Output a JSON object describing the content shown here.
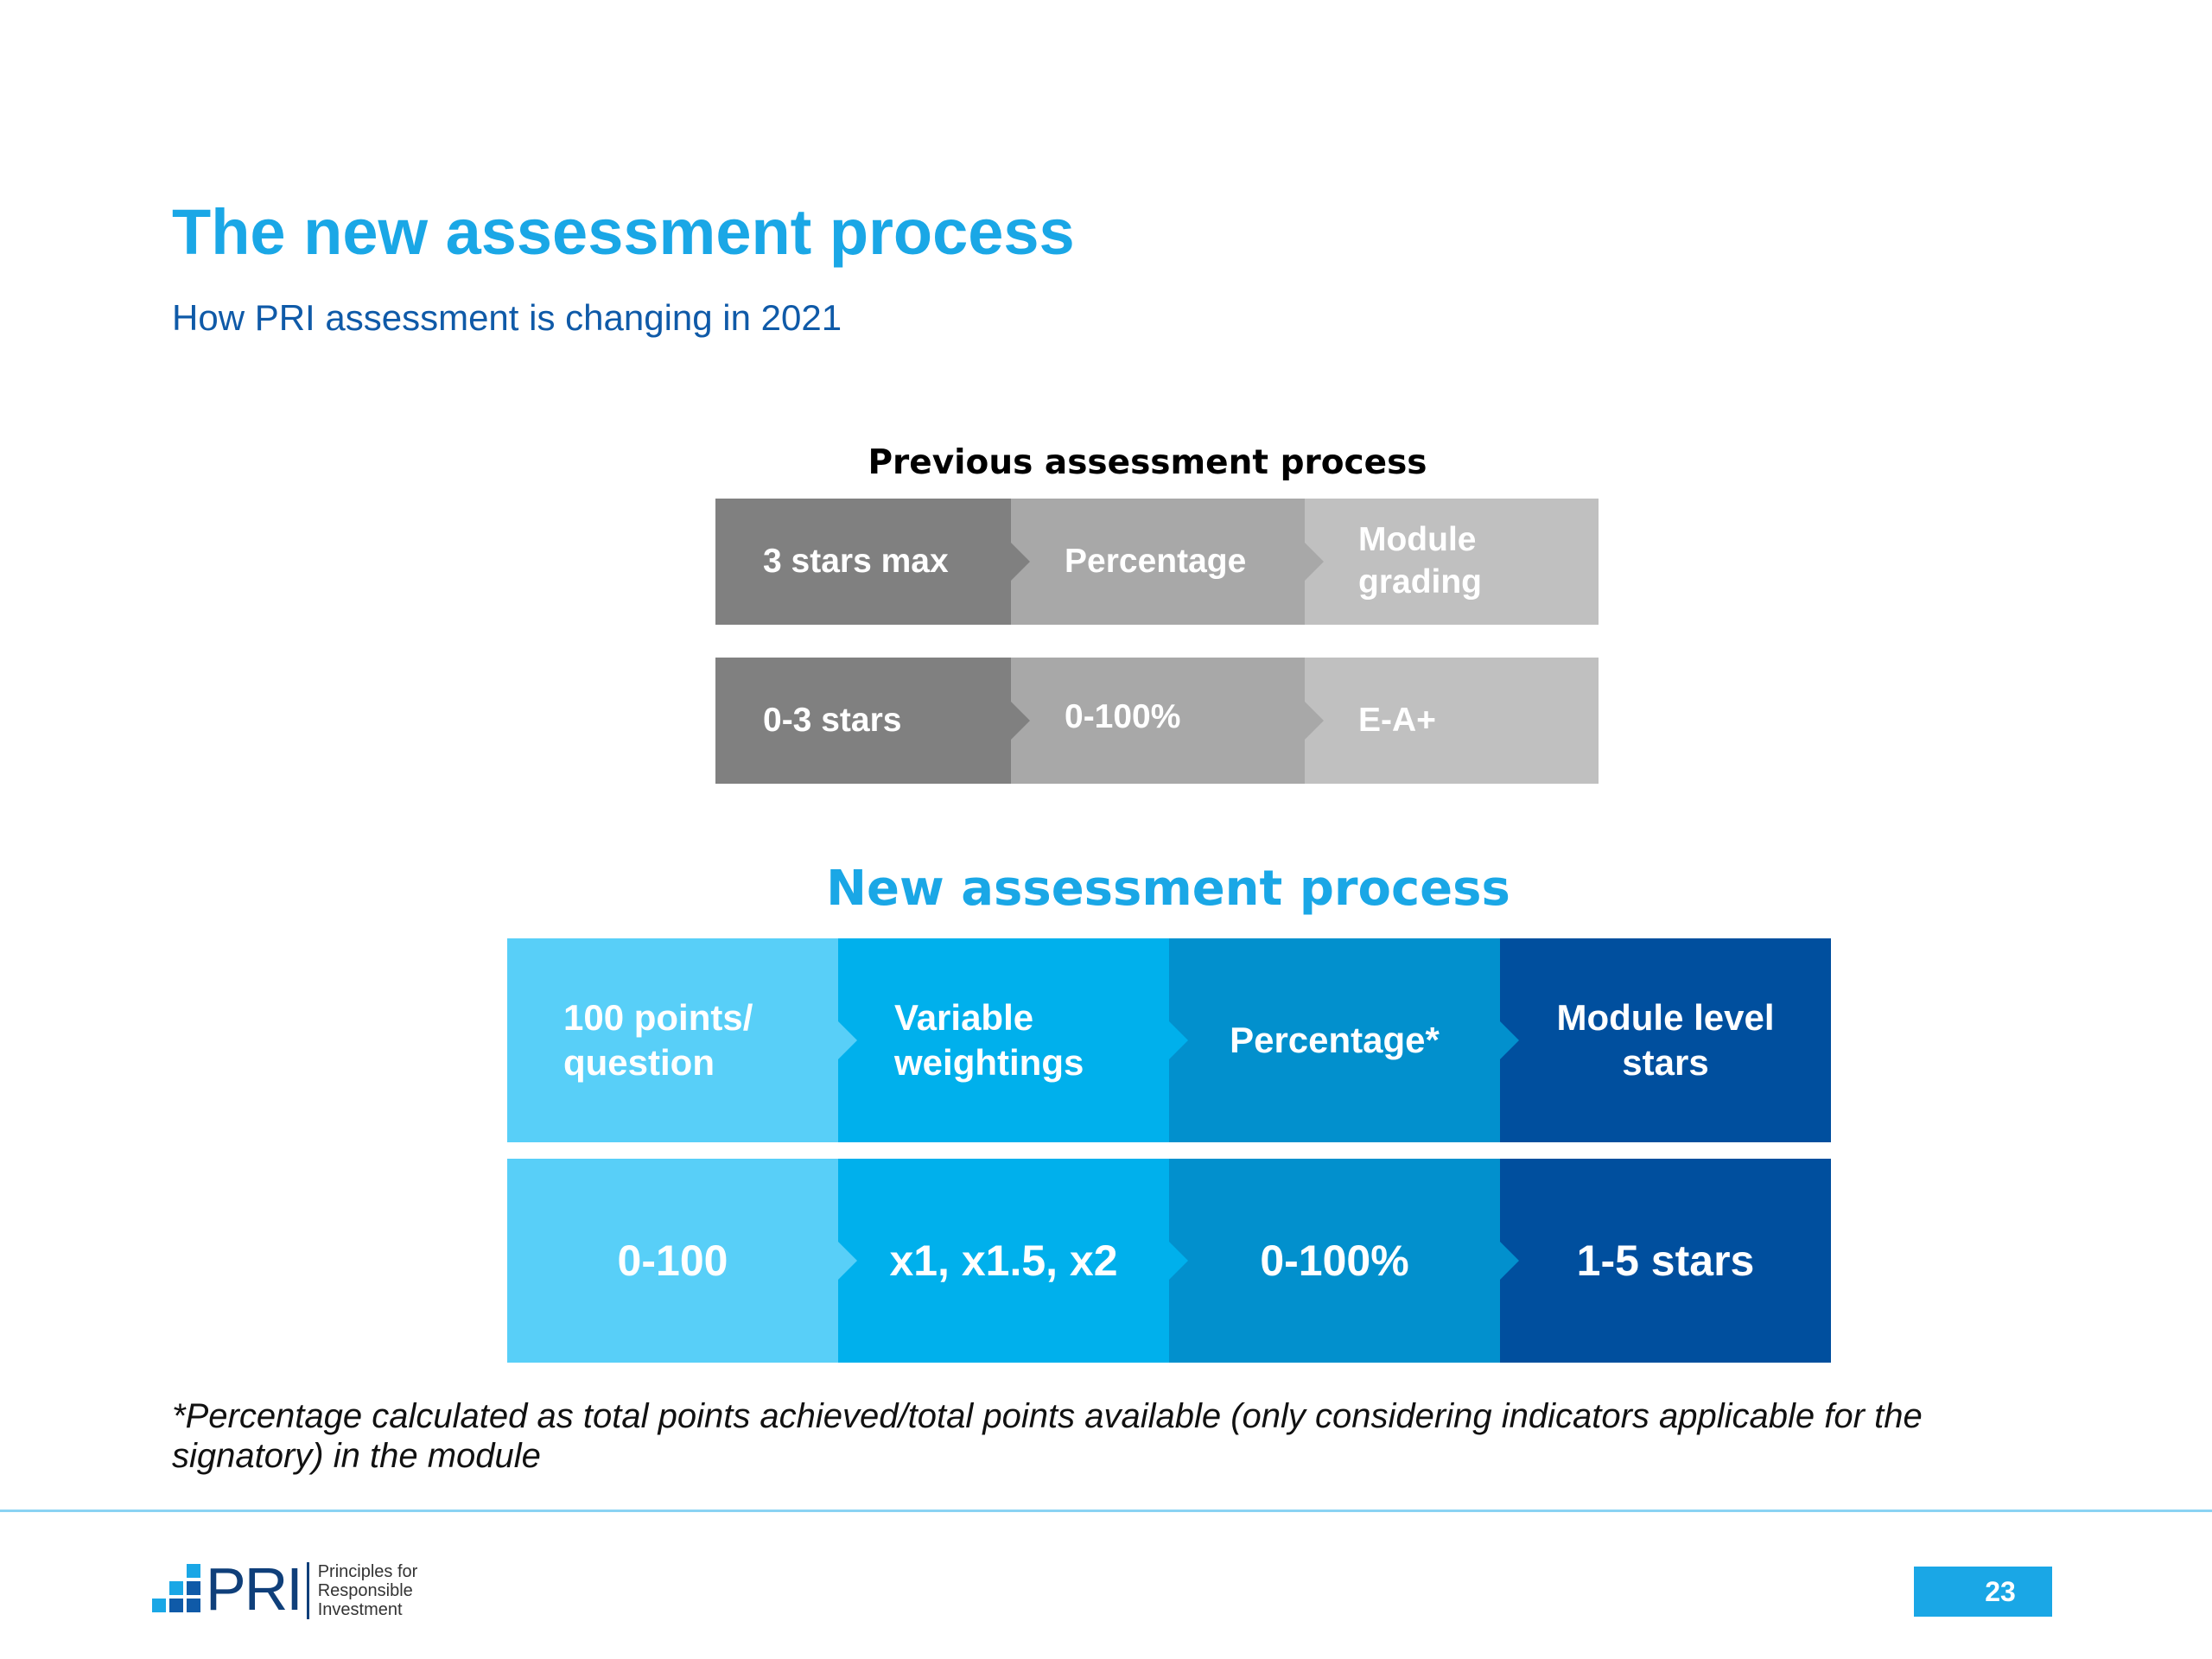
{
  "slide": {
    "title": "The new assessment process",
    "subtitle": "How PRI assessment is changing in 2021",
    "footnote": "*Percentage calculated as total points achieved/total points available (only considering indicators applicable for the signatory) in the module",
    "page_number": "23"
  },
  "previous_process": {
    "heading": "Previous assessment process",
    "rows": [
      [
        "3 stars max",
        "Percentage",
        "Module\ngrading"
      ],
      [
        "0-3 stars",
        "0-100%",
        "E-A+"
      ]
    ]
  },
  "new_process": {
    "heading": "New assessment process",
    "rows": [
      [
        "100 points/\nquestion",
        "Variable\nweightings",
        "Percentage*",
        "Module level\nstars"
      ],
      [
        "0-100",
        "x1, x1.5, x2",
        "0-100%",
        "1-5 stars"
      ]
    ]
  },
  "logo": {
    "mark": "PRI",
    "lines": [
      "Principles for",
      "Responsible",
      "Investment"
    ]
  },
  "colors": {
    "title": "#1aa7e6",
    "subtitle": "#0f5aa8",
    "grey_dark": "#808080",
    "grey_mid": "#a8a8a8",
    "grey_light": "#c0c0c0",
    "blue_1": "#58cff8",
    "blue_2": "#00b0ec",
    "blue_3": "#0290cd",
    "blue_4": "#004f9e"
  }
}
